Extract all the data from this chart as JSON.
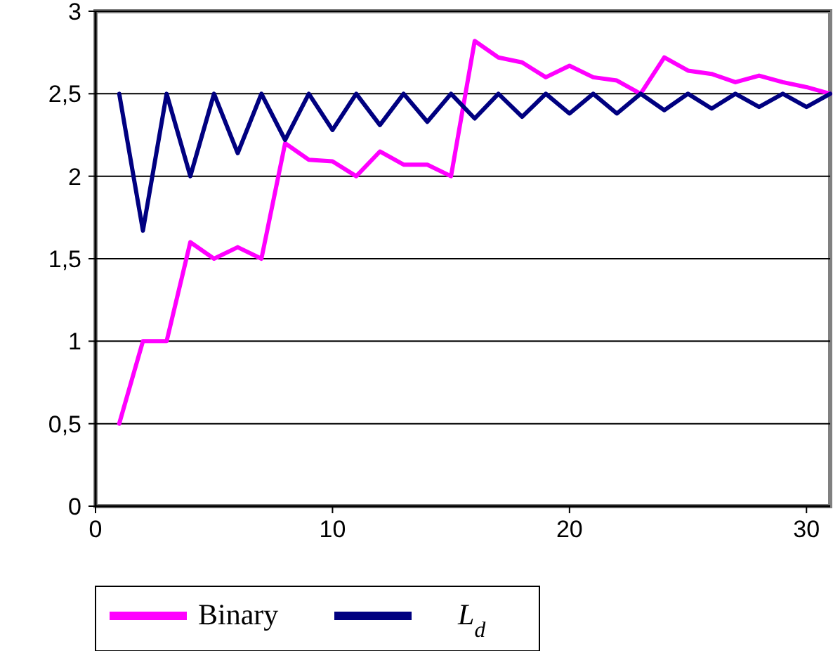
{
  "chart_data": {
    "type": "line",
    "x": [
      1,
      2,
      3,
      4,
      5,
      6,
      7,
      8,
      9,
      10,
      11,
      12,
      13,
      14,
      15,
      16,
      17,
      18,
      19,
      20,
      21,
      22,
      23,
      24,
      25,
      26,
      27,
      28,
      29,
      30,
      31
    ],
    "series": [
      {
        "name": "Binary",
        "color": "#ff00ff",
        "values": [
          0.5,
          1,
          1,
          1.6,
          1.5,
          1.57,
          1.5,
          2.2,
          2.1,
          2.09,
          2,
          2.15,
          2.07,
          2.07,
          2,
          2.82,
          2.72,
          2.69,
          2.6,
          2.67,
          2.6,
          2.58,
          2.5,
          2.72,
          2.64,
          2.62,
          2.57,
          2.61,
          2.57,
          2.54,
          2.5
        ]
      },
      {
        "name": "L$_{d}$",
        "color": "#000080",
        "values": [
          2.5,
          1.67,
          2.5,
          2,
          2.5,
          2.14,
          2.5,
          2.22,
          2.5,
          2.28,
          2.5,
          2.31,
          2.5,
          2.33,
          2.5,
          2.35,
          2.5,
          2.36,
          2.5,
          2.38,
          2.5,
          2.38,
          2.5,
          2.4,
          2.5,
          2.41,
          2.5,
          2.42,
          2.5,
          2.42,
          2.5
        ]
      }
    ],
    "xlim": [
      0,
      31
    ],
    "xticks": [
      0,
      10,
      20,
      30
    ],
    "ylim": [
      0,
      3
    ],
    "yticks": [
      0,
      {
        "value": 0.5,
        "label": "0,5"
      },
      1,
      {
        "value": 1.5,
        "label": "1,5"
      },
      2,
      {
        "value": 2.5,
        "label": "2,5"
      },
      3
    ],
    "grid": "y",
    "legend": "bottom",
    "marker": "none",
    "line_style": "solid"
  }
}
